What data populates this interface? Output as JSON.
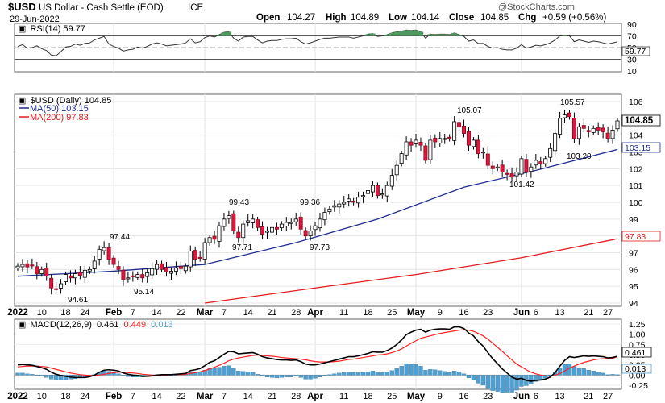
{
  "header": {
    "symbol": "$USD",
    "name": "US Dollar - Cash Settle (EOD)",
    "exchange": "ICE",
    "date": "29-Jun-2022",
    "open_label": "Open",
    "open": "104.27",
    "high_label": "High",
    "high": "104.89",
    "low_label": "Low",
    "low": "104.14",
    "close_label": "Close",
    "close": "104.85",
    "chg_label": "Chg",
    "chg": "+0.59 (+0.56%)",
    "copyright": "@StockCharts.com"
  },
  "rsi_panel": {
    "label": "RSI(14) 59.77",
    "last_value_tag": "59.77",
    "ticks": [
      "90",
      "70",
      "50",
      "30",
      "10"
    ]
  },
  "price_panel": {
    "label": "$USD (Daily) 104.85",
    "ma50_label": "MA(50) 103.15",
    "ma200_label": "MA(200) 97.83",
    "last_price_tag": "104.85",
    "ma50_tag": "103.15",
    "ma200_tag": "97.83",
    "ticks": [
      "106",
      "105",
      "104",
      "103",
      "102",
      "101",
      "100",
      "99",
      "98",
      "97",
      "96",
      "95",
      "94"
    ],
    "annotations": [
      "94.61",
      "97.44",
      "95.14",
      "99.43",
      "97.71",
      "99.36",
      "97.73",
      "105.07",
      "101.42",
      "105.57",
      "103.20"
    ]
  },
  "macd_panel": {
    "label_prefix": "MACD(12,26,9)",
    "macd_value": "0.461",
    "signal_value": "0.449",
    "hist_value": "0.013",
    "macd_tag": "0.461",
    "hist_tag": "0.013",
    "ticks": [
      "1.25",
      "1.00",
      "0.75",
      "0.50",
      "0.25",
      "0.00",
      "-0.25"
    ]
  },
  "x_axis": {
    "labels": [
      "2022",
      "10",
      "18",
      "24",
      "Feb",
      "7",
      "14",
      "22",
      "Mar",
      "7",
      "14",
      "21",
      "28",
      "Apr",
      "11",
      "18",
      "25",
      "May",
      "9",
      "16",
      "23",
      "Jun",
      "6",
      "13",
      "21",
      "27"
    ]
  },
  "colors": {
    "up_candle": "#ffffff",
    "down_candle": "#e0163f",
    "ma50": "#1f2d8f",
    "ma200": "#e31a1c",
    "macd": "#000000",
    "signal": "#ff2020",
    "histogram": "#4f9fd0",
    "rsi_line": "#333333",
    "rsi_fill": "#4f9a5f"
  },
  "chart_data": {
    "type": "candlestick",
    "x": [
      "2022-01-03",
      "2022-01-04",
      "2022-01-05",
      "2022-01-06",
      "2022-01-07",
      "2022-01-10",
      "2022-01-11",
      "2022-01-12",
      "2022-01-13",
      "2022-01-14",
      "2022-01-18",
      "2022-01-19",
      "2022-01-20",
      "2022-01-21",
      "2022-01-24",
      "2022-01-25",
      "2022-01-26",
      "2022-01-27",
      "2022-01-28",
      "2022-01-31",
      "2022-02-01",
      "2022-02-02",
      "2022-02-03",
      "2022-02-04",
      "2022-02-07",
      "2022-02-08",
      "2022-02-09",
      "2022-02-10",
      "2022-02-11",
      "2022-02-14",
      "2022-02-15",
      "2022-02-16",
      "2022-02-17",
      "2022-02-18",
      "2022-02-22",
      "2022-02-23",
      "2022-02-24",
      "2022-02-25",
      "2022-02-28",
      "2022-03-01",
      "2022-03-02",
      "2022-03-03",
      "2022-03-04",
      "2022-03-07",
      "2022-03-08",
      "2022-03-09",
      "2022-03-10",
      "2022-03-11",
      "2022-03-14",
      "2022-03-15",
      "2022-03-16",
      "2022-03-17",
      "2022-03-18",
      "2022-03-21",
      "2022-03-22",
      "2022-03-23",
      "2022-03-24",
      "2022-03-25",
      "2022-03-28",
      "2022-03-29",
      "2022-03-30",
      "2022-03-31",
      "2022-04-01",
      "2022-04-04",
      "2022-04-05",
      "2022-04-06",
      "2022-04-07",
      "2022-04-08",
      "2022-04-11",
      "2022-04-12",
      "2022-04-13",
      "2022-04-14",
      "2022-04-15",
      "2022-04-18",
      "2022-04-19",
      "2022-04-20",
      "2022-04-21",
      "2022-04-22",
      "2022-04-25",
      "2022-04-26",
      "2022-04-27",
      "2022-04-28",
      "2022-04-29",
      "2022-05-02",
      "2022-05-03",
      "2022-05-04",
      "2022-05-05",
      "2022-05-06",
      "2022-05-09",
      "2022-05-10",
      "2022-05-11",
      "2022-05-12",
      "2022-05-13",
      "2022-05-16",
      "2022-05-17",
      "2022-05-18",
      "2022-05-19",
      "2022-05-20",
      "2022-05-23",
      "2022-05-24",
      "2022-05-25",
      "2022-05-26",
      "2022-05-27",
      "2022-05-30",
      "2022-05-31",
      "2022-06-01",
      "2022-06-02",
      "2022-06-03",
      "2022-06-06",
      "2022-06-07",
      "2022-06-08",
      "2022-06-09",
      "2022-06-10",
      "2022-06-13",
      "2022-06-14",
      "2022-06-15",
      "2022-06-16",
      "2022-06-17",
      "2022-06-20",
      "2022-06-21",
      "2022-06-22",
      "2022-06-23",
      "2022-06-24",
      "2022-06-27",
      "2022-06-28",
      "2022-06-29"
    ],
    "close": [
      96.2,
      96.3,
      96.15,
      96.25,
      95.75,
      96.0,
      95.6,
      94.9,
      94.85,
      95.15,
      95.7,
      95.5,
      95.75,
      95.65,
      95.95,
      96.0,
      96.5,
      97.2,
      97.3,
      96.6,
      96.3,
      96.0,
      95.4,
      95.5,
      95.6,
      95.7,
      95.5,
      95.8,
      96.05,
      96.3,
      96.0,
      95.85,
      95.9,
      96.1,
      96.05,
      96.2,
      97.1,
      96.6,
      96.7,
      97.6,
      97.9,
      97.8,
      98.6,
      99.0,
      99.2,
      98.3,
      97.9,
      98.7,
      98.9,
      99.0,
      98.5,
      98.1,
      98.3,
      98.5,
      98.4,
      98.7,
      98.8,
      98.8,
      99.0,
      98.4,
      98.0,
      98.3,
      98.6,
      99.0,
      99.4,
      99.6,
      99.8,
      99.9,
      100.0,
      100.2,
      100.0,
      100.3,
      100.4,
      100.7,
      101.0,
      100.4,
      100.5,
      101.0,
      101.6,
      102.2,
      102.9,
      103.6,
      103.4,
      103.7,
      103.4,
      102.5,
      103.7,
      103.6,
      103.8,
      103.8,
      103.8,
      104.8,
      104.5,
      104.1,
      103.4,
      103.7,
      102.9,
      103.0,
      102.2,
      102.0,
      102.1,
      101.8,
      101.7,
      101.5,
      101.8,
      102.6,
      101.8,
      102.1,
      102.5,
      102.3,
      102.6,
      103.2,
      104.1,
      105.0,
      105.2,
      105.1,
      103.8,
      104.5,
      104.4,
      104.2,
      104.4,
      104.3,
      104.2,
      103.8,
      104.3,
      104.85
    ],
    "ma50_points": [
      {
        "x": "2022-01-03",
        "y": 95.6
      },
      {
        "x": "2022-02-01",
        "y": 95.9
      },
      {
        "x": "2022-03-01",
        "y": 96.3
      },
      {
        "x": "2022-03-28",
        "y": 97.6
      },
      {
        "x": "2022-04-20",
        "y": 99.0
      },
      {
        "x": "2022-05-16",
        "y": 100.9
      },
      {
        "x": "2022-06-06",
        "y": 101.9
      },
      {
        "x": "2022-06-29",
        "y": 103.15
      }
    ],
    "ma200_points": [
      {
        "x": "2022-03-01",
        "y": 94.0
      },
      {
        "x": "2022-04-01",
        "y": 94.9
      },
      {
        "x": "2022-05-01",
        "y": 95.7
      },
      {
        "x": "2022-06-01",
        "y": 96.7
      },
      {
        "x": "2022-06-29",
        "y": 97.83
      }
    ],
    "rsi": {
      "values": [
        52,
        55,
        49,
        50,
        53,
        48,
        45,
        37,
        36,
        43,
        51,
        52,
        56,
        54,
        57,
        58,
        63,
        66,
        69,
        56,
        52,
        49,
        44,
        46,
        47,
        51,
        49,
        52,
        56,
        58,
        56,
        53,
        54,
        55,
        56,
        58,
        65,
        58,
        60,
        67,
        70,
        68,
        72,
        76,
        77,
        66,
        61,
        68,
        69,
        69,
        63,
        58,
        61,
        62,
        62,
        64,
        65,
        65,
        66,
        60,
        56,
        58,
        61,
        64,
        66,
        66,
        67,
        68,
        68,
        68,
        66,
        68,
        70,
        73,
        74,
        69,
        70,
        72,
        75,
        77,
        78,
        80,
        79,
        80,
        77,
        66,
        73,
        72,
        73,
        73,
        72,
        75,
        72,
        69,
        61,
        63,
        57,
        57,
        52,
        49,
        50,
        47,
        46,
        46,
        49,
        55,
        49,
        51,
        54,
        53,
        55,
        58,
        63,
        70,
        71,
        70,
        60,
        63,
        61,
        59,
        61,
        60,
        58,
        56,
        58,
        59.77
      ],
      "ylim": [
        10,
        90
      ]
    },
    "macd": {
      "macd_values": [
        0.25,
        0.26,
        0.25,
        0.24,
        0.21,
        0.18,
        0.14,
        0.07,
        0.02,
        -0.01,
        -0.03,
        -0.05,
        -0.06,
        -0.06,
        -0.06,
        -0.04,
        0.0,
        0.07,
        0.12,
        0.13,
        0.12,
        0.1,
        0.05,
        0.02,
        0.0,
        -0.01,
        -0.03,
        -0.03,
        -0.02,
        0.0,
        0.01,
        0.01,
        0.01,
        0.02,
        0.03,
        0.04,
        0.11,
        0.13,
        0.16,
        0.23,
        0.31,
        0.35,
        0.43,
        0.51,
        0.58,
        0.57,
        0.52,
        0.53,
        0.54,
        0.55,
        0.51,
        0.45,
        0.42,
        0.4,
        0.38,
        0.37,
        0.37,
        0.36,
        0.37,
        0.33,
        0.27,
        0.25,
        0.25,
        0.27,
        0.3,
        0.33,
        0.36,
        0.39,
        0.42,
        0.45,
        0.45,
        0.47,
        0.5,
        0.53,
        0.57,
        0.56,
        0.56,
        0.6,
        0.66,
        0.75,
        0.86,
        0.99,
        1.05,
        1.1,
        1.12,
        1.05,
        1.1,
        1.12,
        1.13,
        1.13,
        1.12,
        1.18,
        1.18,
        1.14,
        1.03,
        0.96,
        0.82,
        0.71,
        0.55,
        0.4,
        0.28,
        0.15,
        0.05,
        -0.05,
        -0.1,
        -0.08,
        -0.13,
        -0.15,
        -0.13,
        -0.12,
        -0.1,
        -0.05,
        0.06,
        0.22,
        0.36,
        0.45,
        0.43,
        0.45,
        0.47,
        0.46,
        0.47,
        0.46,
        0.45,
        0.42,
        0.43,
        0.461
      ],
      "signal_values": [
        0.2,
        0.21,
        0.22,
        0.22,
        0.22,
        0.21,
        0.2,
        0.17,
        0.14,
        0.11,
        0.08,
        0.05,
        0.03,
        0.01,
        0.0,
        -0.01,
        -0.01,
        0.0,
        0.02,
        0.04,
        0.06,
        0.07,
        0.07,
        0.06,
        0.05,
        0.04,
        0.02,
        0.01,
        0.0,
        0.0,
        0.0,
        0.0,
        0.01,
        0.01,
        0.01,
        0.02,
        0.04,
        0.06,
        0.08,
        0.11,
        0.15,
        0.19,
        0.24,
        0.29,
        0.35,
        0.39,
        0.42,
        0.44,
        0.46,
        0.48,
        0.49,
        0.48,
        0.47,
        0.46,
        0.45,
        0.43,
        0.42,
        0.41,
        0.4,
        0.39,
        0.37,
        0.35,
        0.33,
        0.32,
        0.32,
        0.32,
        0.33,
        0.34,
        0.36,
        0.38,
        0.39,
        0.41,
        0.43,
        0.45,
        0.47,
        0.49,
        0.5,
        0.52,
        0.55,
        0.59,
        0.64,
        0.71,
        0.78,
        0.84,
        0.9,
        0.93,
        0.96,
        0.99,
        1.02,
        1.04,
        1.06,
        1.08,
        1.1,
        1.11,
        1.1,
        1.07,
        1.02,
        0.96,
        0.88,
        0.78,
        0.68,
        0.58,
        0.47,
        0.37,
        0.27,
        0.2,
        0.13,
        0.07,
        0.03,
        0.0,
        -0.02,
        -0.03,
        -0.01,
        0.04,
        0.1,
        0.17,
        0.22,
        0.27,
        0.31,
        0.34,
        0.37,
        0.39,
        0.4,
        0.41,
        0.41,
        0.449
      ],
      "ylim": [
        -0.35,
        1.35
      ]
    }
  }
}
